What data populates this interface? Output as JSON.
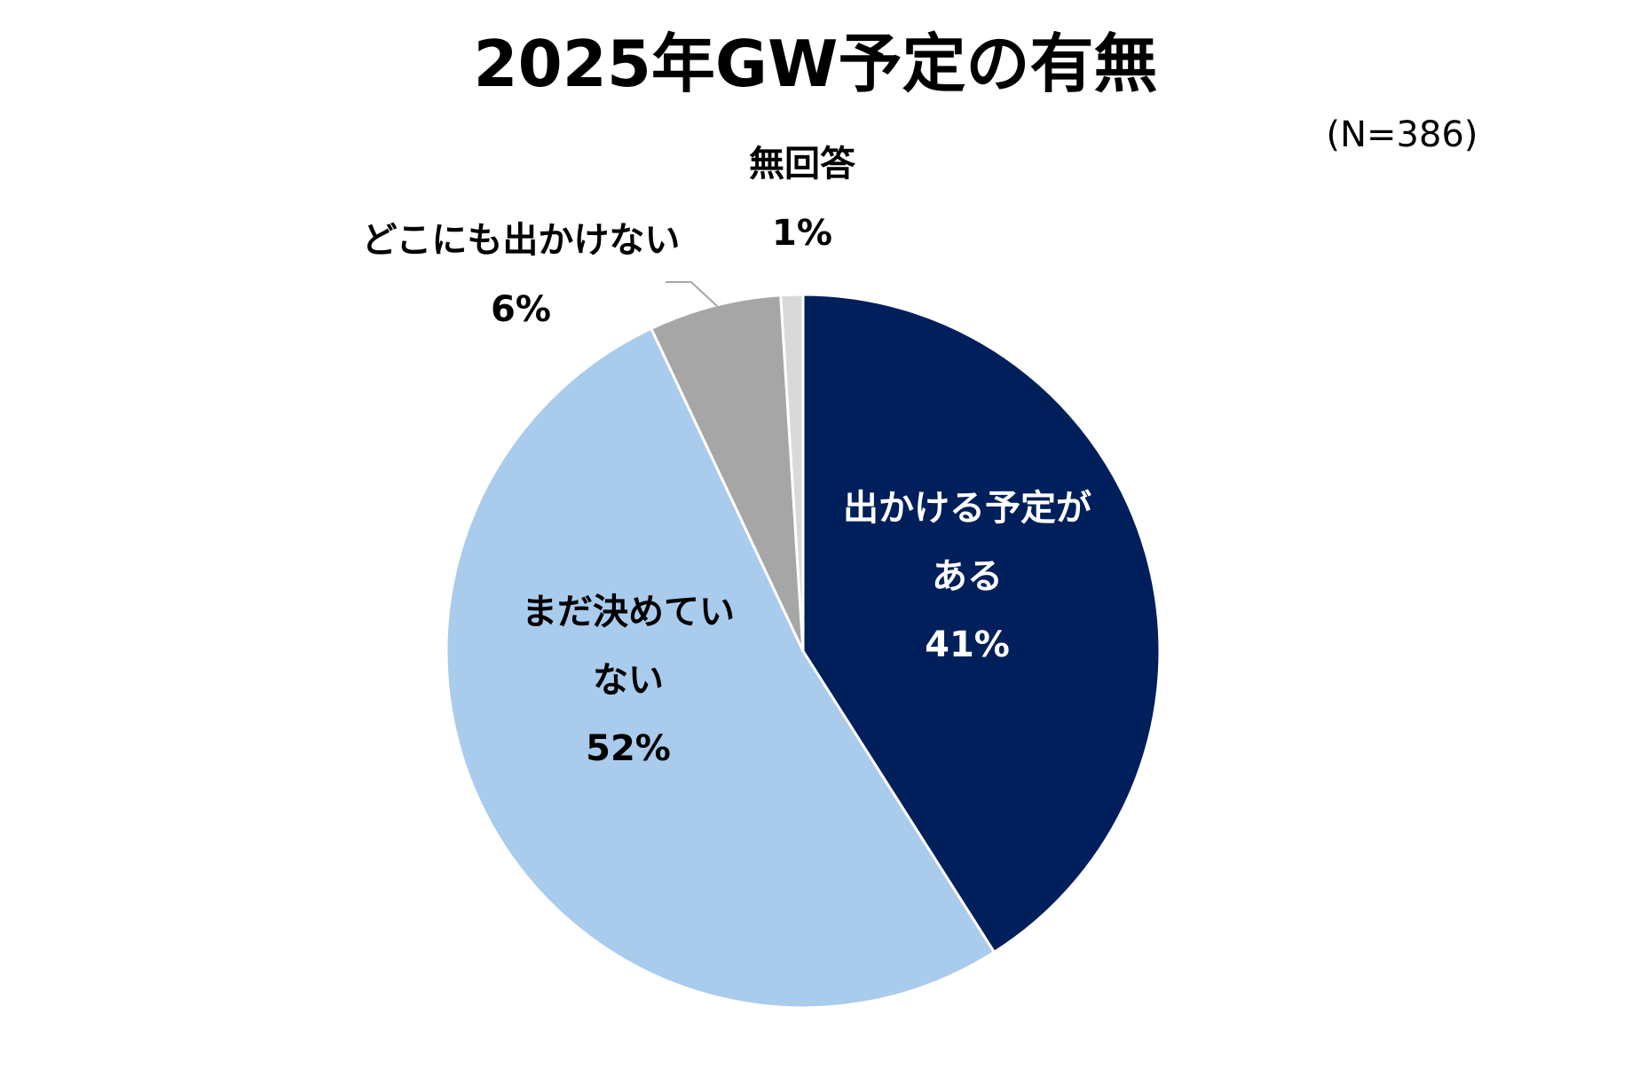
{
  "chart_data": {
    "type": "pie",
    "title": "2025年GW予定の有無",
    "note": "(N=386)",
    "start_angle_deg": 0,
    "direction": "clockwise",
    "slices": [
      {
        "key": "plan",
        "label_lines": [
          "出かける予定が",
          "ある"
        ],
        "value": 41,
        "value_label": "41%",
        "color": "#001F5B",
        "label_color": "#FFFFFF"
      },
      {
        "key": "undecided",
        "label_lines": [
          "まだ決めてい",
          "ない"
        ],
        "value": 52,
        "value_label": "52%",
        "color": "#A9CBEC",
        "label_color": "#000000"
      },
      {
        "key": "none",
        "label_lines": [
          "どこにも出かけない"
        ],
        "value": 6,
        "value_label": "6%",
        "color": "#A6A6A6",
        "label_color": "#000000"
      },
      {
        "key": "no-answer",
        "label_lines": [
          "無回答"
        ],
        "value": 1,
        "value_label": "1%",
        "color": "#D9D9D9",
        "label_color": "#000000"
      }
    ]
  }
}
